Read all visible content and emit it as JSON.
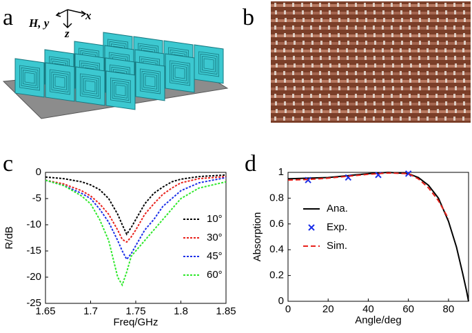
{
  "panel_labels": [
    "a",
    "b",
    "c",
    "d"
  ],
  "schematic": {
    "axis_labels": [
      "H, y",
      "x",
      "z"
    ]
  },
  "chart_data": [
    {
      "type": "line",
      "xlabel": "Freq/GHz",
      "ylabel": "R/dB",
      "xlim": [
        1.65,
        1.85
      ],
      "ylim": [
        -25,
        0
      ],
      "xticks": [
        1.65,
        1.7,
        1.75,
        1.8,
        1.85
      ],
      "yticks": [
        0,
        -5,
        -10,
        -15,
        -20,
        -25
      ],
      "legend": "right",
      "series": [
        {
          "name": "10°",
          "color": "#000000",
          "style": "dotted",
          "x": [
            1.65,
            1.67,
            1.69,
            1.7,
            1.71,
            1.72,
            1.73,
            1.735,
            1.74,
            1.745,
            1.75,
            1.76,
            1.77,
            1.78,
            1.79,
            1.8,
            1.82,
            1.85
          ],
          "values": [
            -0.9,
            -1.2,
            -1.8,
            -2.4,
            -3.3,
            -5,
            -8,
            -10,
            -11.8,
            -10.5,
            -9,
            -6,
            -4,
            -2.8,
            -1.8,
            -1.3,
            -0.8,
            -0.5
          ]
        },
        {
          "name": "30°",
          "color": "#e8201a",
          "style": "dotted",
          "x": [
            1.65,
            1.67,
            1.69,
            1.7,
            1.71,
            1.72,
            1.73,
            1.735,
            1.74,
            1.745,
            1.75,
            1.76,
            1.77,
            1.78,
            1.79,
            1.8,
            1.82,
            1.85
          ],
          "values": [
            -1.5,
            -2.2,
            -3.5,
            -4.5,
            -6,
            -8,
            -11,
            -12.8,
            -13.3,
            -12.3,
            -11,
            -8,
            -6,
            -4.2,
            -3,
            -2,
            -1.2,
            -0.8
          ]
        },
        {
          "name": "45°",
          "color": "#1a2ee8",
          "style": "dotted",
          "x": [
            1.65,
            1.67,
            1.69,
            1.7,
            1.71,
            1.72,
            1.73,
            1.735,
            1.74,
            1.745,
            1.75,
            1.76,
            1.77,
            1.78,
            1.79,
            1.8,
            1.82,
            1.85
          ],
          "values": [
            -1.5,
            -2.5,
            -4,
            -5,
            -7,
            -9.5,
            -13,
            -15,
            -16.6,
            -15.5,
            -14,
            -11,
            -9,
            -6.5,
            -5,
            -3.5,
            -2,
            -1
          ]
        },
        {
          "name": "60°",
          "color": "#2ee82a",
          "style": "dotted",
          "x": [
            1.65,
            1.67,
            1.69,
            1.7,
            1.71,
            1.72,
            1.73,
            1.735,
            1.74,
            1.745,
            1.75,
            1.76,
            1.77,
            1.78,
            1.79,
            1.8,
            1.82,
            1.85
          ],
          "values": [
            -1.5,
            -2.5,
            -4.5,
            -6,
            -9,
            -13,
            -20,
            -21.5,
            -19,
            -16,
            -15,
            -13,
            -11,
            -9,
            -7,
            -5,
            -3,
            -1.8
          ]
        }
      ]
    },
    {
      "type": "line",
      "xlabel": "Angle/deg",
      "ylabel": "Absorption",
      "xlim": [
        0,
        90
      ],
      "ylim": [
        0,
        1
      ],
      "xticks": [
        0,
        20,
        40,
        60,
        80
      ],
      "yticks": [
        0,
        0.2,
        0.4,
        0.6,
        0.8,
        1
      ],
      "legend": "left",
      "series": [
        {
          "name": "Ana.",
          "color": "#000000",
          "style": "solid",
          "x": [
            0,
            10,
            20,
            30,
            40,
            50,
            60,
            65,
            70,
            75,
            80,
            84,
            87,
            89,
            90
          ],
          "values": [
            0.95,
            0.955,
            0.96,
            0.975,
            0.99,
            1.0,
            0.99,
            0.96,
            0.9,
            0.8,
            0.62,
            0.42,
            0.22,
            0.08,
            0
          ]
        },
        {
          "name": "Exp.",
          "color": "#1a2ee8",
          "style": "marker",
          "x": [
            10,
            30,
            45,
            60
          ],
          "values": [
            0.94,
            0.96,
            0.98,
            0.99
          ]
        },
        {
          "name": "Sim.",
          "color": "#e8201a",
          "style": "dashed",
          "x": [
            0,
            10,
            20,
            30,
            40,
            50,
            60,
            65,
            70,
            75,
            80
          ],
          "values": [
            0.94,
            0.945,
            0.955,
            0.97,
            0.985,
            0.995,
            0.99,
            0.95,
            0.88,
            0.78,
            0.64
          ]
        }
      ]
    }
  ]
}
